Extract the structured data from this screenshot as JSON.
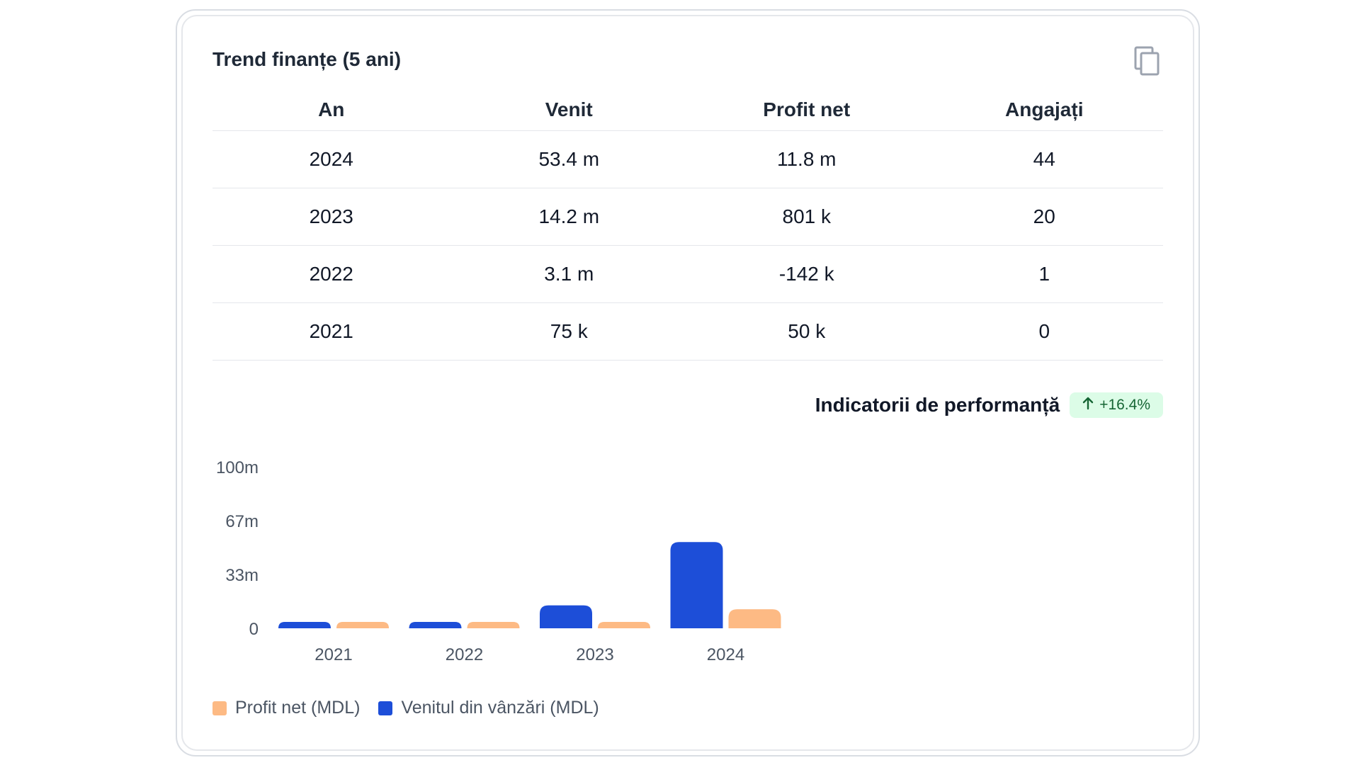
{
  "card": {
    "title": "Trend finanțe (5 ani)",
    "copy_icon": "copy-icon"
  },
  "table": {
    "headers": [
      "An",
      "Venit",
      "Profit net",
      "Angajați"
    ],
    "rows": [
      [
        "2024",
        "53.4 m",
        "11.8 m",
        "44"
      ],
      [
        "2023",
        "14.2 m",
        "801 k",
        "20"
      ],
      [
        "2022",
        "3.1 m",
        "-142 k",
        "1"
      ],
      [
        "2021",
        "75 k",
        "50 k",
        "0"
      ]
    ]
  },
  "performance": {
    "label": "Indicatorii de performanță",
    "badge_icon": "arrow-up-icon",
    "badge_value": "+16.4%"
  },
  "chart_data": {
    "type": "bar",
    "categories": [
      "2021",
      "2022",
      "2023",
      "2024"
    ],
    "series": [
      {
        "name": "Venitul din vânzări (MDL)",
        "color": "#1d4ed8",
        "values": [
          0.075,
          3.1,
          14.2,
          53.4
        ]
      },
      {
        "name": "Profit net (MDL)",
        "color": "#fdba84",
        "values": [
          0.05,
          -0.142,
          0.801,
          11.8
        ]
      }
    ],
    "y_ticks": [
      "0",
      "33m",
      "67m",
      "100m"
    ],
    "ylim": [
      0,
      100
    ],
    "grid": false,
    "legend_position": "bottom-left"
  },
  "legend": [
    {
      "label": "Profit net (MDL)",
      "color": "#fdba84"
    },
    {
      "label": "Venitul din vânzări (MDL)",
      "color": "#1d4ed8"
    }
  ],
  "colors": {
    "accent_blue": "#1d4ed8",
    "accent_orange": "#fdba84",
    "badge_bg": "#dcfce7",
    "badge_text": "#166534"
  }
}
